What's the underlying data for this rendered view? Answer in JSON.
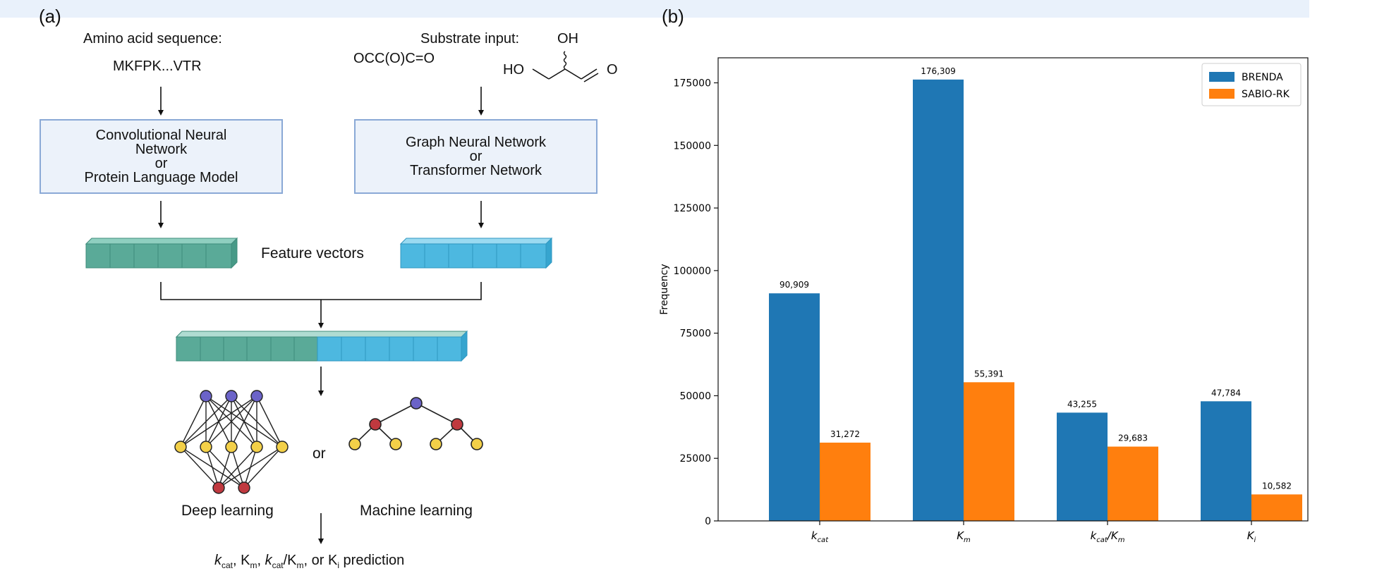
{
  "panel_a": {
    "label": "(a)",
    "amino_title": "Amino acid sequence:",
    "amino_seq": "MKFPK...VTR",
    "substrate_title": "Substrate input:",
    "substrate_smiles": "OCC(O)C=O",
    "mol_oh_top": "OH",
    "mol_ho_left": "HO",
    "mol_o_right": "O",
    "box_left": {
      "line1": "Convolutional Neural",
      "line2": "Network",
      "line3": "or",
      "line4": "Protein Language Model"
    },
    "box_right": {
      "line1": "Graph Neural Network",
      "line2": "or",
      "line3": "Transformer Network"
    },
    "feature_label": "Feature vectors",
    "or_label": "or",
    "deep_label": "Deep learning",
    "ml_label": "Machine learning",
    "pred": {
      "k": "k",
      "cat": "cat",
      "sep1": ", K",
      "m1": "m",
      "sep2": ", ",
      "k2": "k",
      "cat2": "cat",
      "slash": "/K",
      "m2": "m",
      "tail": ", or K",
      "i": "i",
      "end": " prediction"
    },
    "colors": {
      "teal": "#5aaa98",
      "teal_dark": "#3f8c7b",
      "sky": "#4db8e0",
      "sky_dark": "#2f97c1",
      "node_blue": "#6b63c8",
      "node_yellow": "#f3d048",
      "node_red": "#c0393f"
    }
  },
  "panel_b": {
    "label": "(b)"
  },
  "chart_data": {
    "type": "bar",
    "categories": [
      "k_cat",
      "K_m",
      "k_cat/K_m",
      "K_i"
    ],
    "category_labels": [
      {
        "main": "k",
        "sub": "cat",
        "rest": "",
        "sub2": ""
      },
      {
        "main": "K",
        "sub": "m",
        "rest": "",
        "sub2": ""
      },
      {
        "main": "k",
        "sub": "cat",
        "rest": "/K",
        "sub2": "m"
      },
      {
        "main": "K",
        "sub": "i",
        "rest": "",
        "sub2": ""
      }
    ],
    "series": [
      {
        "name": "BRENDA",
        "color": "#1f77b4",
        "values": [
          90909,
          176309,
          43255,
          47784
        ],
        "labels": [
          "90,909",
          "176,309",
          "43,255",
          "47,784"
        ]
      },
      {
        "name": "SABIO-RK",
        "color": "#ff7f0e",
        "values": [
          31272,
          55391,
          29683,
          10582
        ],
        "labels": [
          "31,272",
          "55,391",
          "29,683",
          "10,582"
        ]
      }
    ],
    "ylabel": "Frequency",
    "xlabel": "",
    "ylim": [
      0,
      185000
    ],
    "yticks": [
      0,
      25000,
      50000,
      75000,
      100000,
      125000,
      150000,
      175000
    ],
    "legend_position": "top-right"
  }
}
